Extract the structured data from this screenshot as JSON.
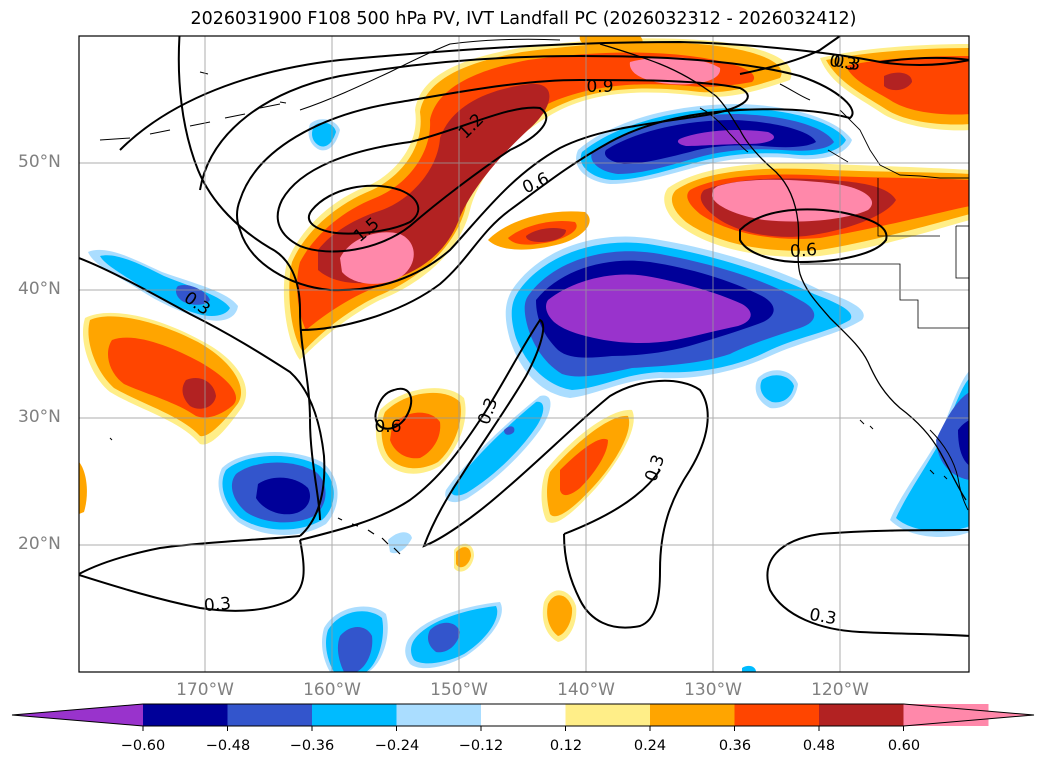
{
  "title": "2026031900 F108 500 hPa PV, IVT Landfall PC (2026032312 - 2026032412)",
  "lat_labels": [
    "50°N",
    "40°N",
    "30°N",
    "20°N"
  ],
  "lon_labels": [
    "170°W",
    "160°W",
    "150°W",
    "140°W",
    "130°W",
    "120°W"
  ],
  "colorbar": {
    "ticks": [
      "−0.60",
      "−0.48",
      "−0.36",
      "−0.24",
      "−0.12",
      "0.12",
      "0.24",
      "0.36",
      "0.48",
      "0.60"
    ],
    "colors": [
      "#9933cc",
      "#000099",
      "#3355cc",
      "#00bbff",
      "#aaddff",
      "#ffffff",
      "#ffee88",
      "#ffa500",
      "#ff4500",
      "#b22222",
      "#ff88aa",
      "#ff88aa"
    ]
  },
  "contour_labels": [
    "1.5",
    "1.2",
    "0.9",
    "0.6",
    "0.3",
    "0.6",
    "0.3",
    "0.3",
    "0.3",
    "0.6",
    "0.3",
    "0.3",
    "0.3"
  ],
  "colors": {
    "neg_lt_060": "#9933cc",
    "neg_048": "#000099",
    "neg_036": "#3355cc",
    "neg_024": "#00bbff",
    "neg_012": "#aaddff",
    "pos_012": "#ffee88",
    "pos_024": "#ffa500",
    "pos_036": "#ff4500",
    "pos_048": "#b22222",
    "pos_060": "#ff88aa"
  }
}
